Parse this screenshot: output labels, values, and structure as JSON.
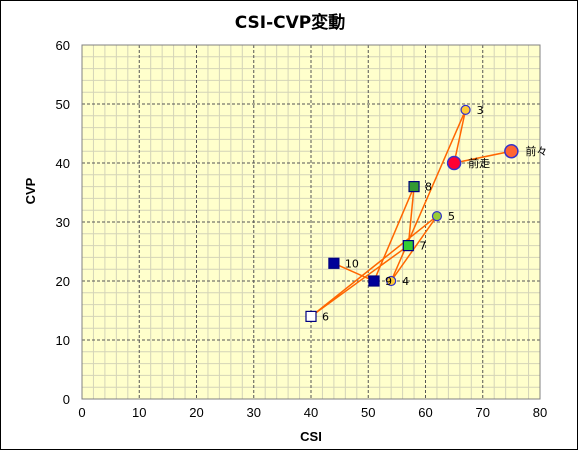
{
  "chart_data": {
    "type": "scatter",
    "title": "CSI-CVP変動",
    "xlabel": "CSI",
    "ylabel": "CVP",
    "xlim": [
      0,
      80
    ],
    "ylim": [
      0,
      60
    ],
    "xticks": [
      0,
      10,
      20,
      30,
      40,
      50,
      60,
      70,
      80
    ],
    "yticks": [
      0,
      10,
      20,
      30,
      40,
      50,
      60
    ],
    "grid": true,
    "background_color": "#ffffcc",
    "line_color": "#ff6600",
    "path_order": [
      "前々",
      "前走",
      "3",
      "4",
      "5",
      "6",
      "7",
      "8",
      "9",
      "10"
    ],
    "points": [
      {
        "label": "前々",
        "x": 75,
        "y": 42,
        "marker": "circle-large",
        "fill": "#ff6633",
        "stroke": "#3333cc"
      },
      {
        "label": "前走",
        "x": 65,
        "y": 40,
        "marker": "circle-large",
        "fill": "#ff0033",
        "stroke": "#3333cc"
      },
      {
        "label": "3",
        "x": 67,
        "y": 49,
        "marker": "circle",
        "fill": "#ffcc33",
        "stroke": "#3333cc"
      },
      {
        "label": "4",
        "x": 54,
        "y": 20,
        "marker": "circle",
        "fill": "#ffcc33",
        "stroke": "#3333cc"
      },
      {
        "label": "5",
        "x": 62,
        "y": 31,
        "marker": "circle",
        "fill": "#99cc33",
        "stroke": "#3333cc"
      },
      {
        "label": "6",
        "x": 40,
        "y": 14,
        "marker": "square",
        "fill": "#ffffff",
        "stroke": "#000080"
      },
      {
        "label": "7",
        "x": 57,
        "y": 26,
        "marker": "square",
        "fill": "#33cc33",
        "stroke": "#000080"
      },
      {
        "label": "8",
        "x": 58,
        "y": 36,
        "marker": "square",
        "fill": "#339933",
        "stroke": "#000080"
      },
      {
        "label": "9",
        "x": 51,
        "y": 20,
        "marker": "square",
        "fill": "#000099",
        "stroke": "#000080"
      },
      {
        "label": "10",
        "x": 44,
        "y": 23,
        "marker": "square",
        "fill": "#000099",
        "stroke": "#000080"
      }
    ]
  }
}
